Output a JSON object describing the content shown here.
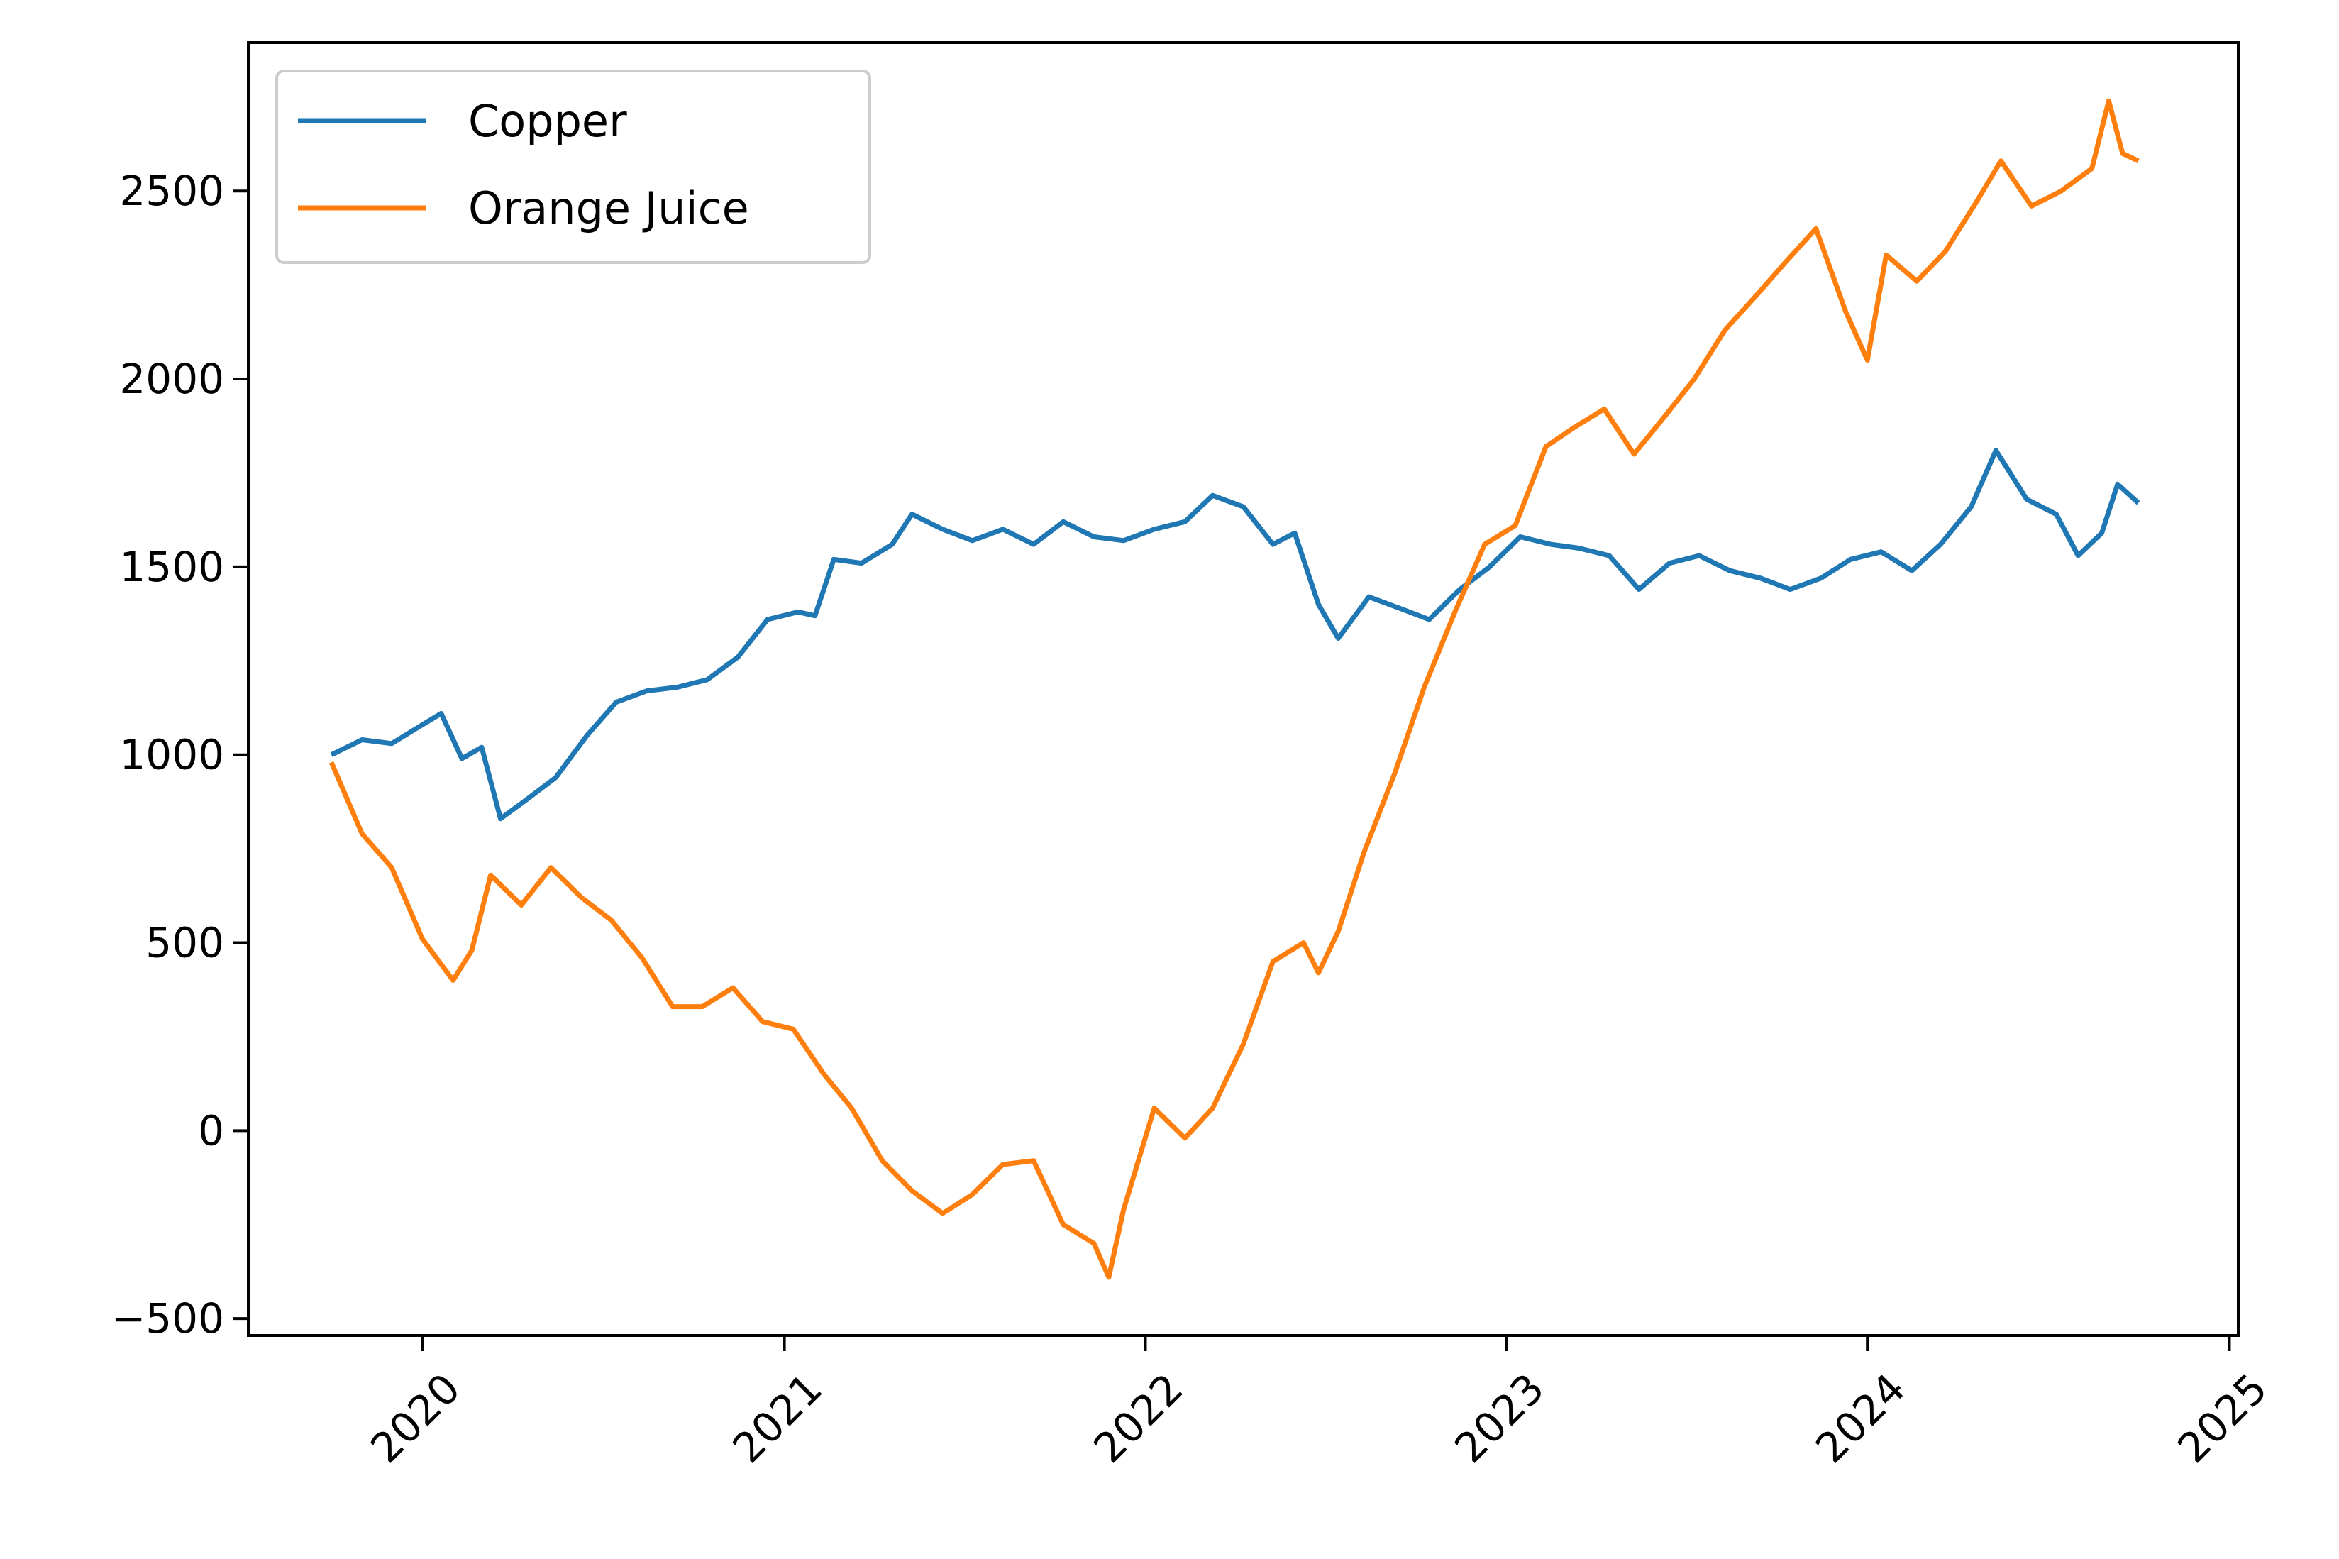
{
  "chart_data": {
    "type": "line",
    "title": "",
    "xlabel": "",
    "ylabel": "",
    "x_ticks": [
      "2020",
      "2021",
      "2022",
      "2023",
      "2024",
      "2025"
    ],
    "y_ticks": [
      "−500",
      "0",
      "500",
      "1000",
      "1500",
      "2000",
      "2500"
    ],
    "xlim": [
      "2019-07-09",
      "2025-01-10"
    ],
    "ylim": [
      -545,
      2895
    ],
    "grid": false,
    "legend_position": "upper-left",
    "series": [
      {
        "name": "Copper",
        "color": "#1f77b4",
        "points": [
          [
            "2019-10-01",
            1000
          ],
          [
            "2019-11-01",
            1040
          ],
          [
            "2019-12-01",
            1030
          ],
          [
            "2020-01-01",
            1080
          ],
          [
            "2020-01-20",
            1110
          ],
          [
            "2020-02-10",
            990
          ],
          [
            "2020-03-01",
            1020
          ],
          [
            "2020-03-20",
            830
          ],
          [
            "2020-04-15",
            880
          ],
          [
            "2020-05-15",
            940
          ],
          [
            "2020-06-15",
            1050
          ],
          [
            "2020-07-15",
            1140
          ],
          [
            "2020-08-15",
            1170
          ],
          [
            "2020-09-15",
            1180
          ],
          [
            "2020-10-15",
            1200
          ],
          [
            "2020-11-15",
            1260
          ],
          [
            "2020-12-15",
            1360
          ],
          [
            "2021-01-15",
            1380
          ],
          [
            "2021-02-01",
            1370
          ],
          [
            "2021-02-20",
            1520
          ],
          [
            "2021-03-20",
            1510
          ],
          [
            "2021-04-20",
            1560
          ],
          [
            "2021-05-10",
            1640
          ],
          [
            "2021-06-10",
            1600
          ],
          [
            "2021-07-10",
            1570
          ],
          [
            "2021-08-10",
            1600
          ],
          [
            "2021-09-10",
            1560
          ],
          [
            "2021-10-10",
            1620
          ],
          [
            "2021-11-10",
            1580
          ],
          [
            "2021-12-10",
            1570
          ],
          [
            "2022-01-10",
            1600
          ],
          [
            "2022-02-10",
            1620
          ],
          [
            "2022-03-10",
            1690
          ],
          [
            "2022-04-10",
            1660
          ],
          [
            "2022-05-10",
            1560
          ],
          [
            "2022-06-01",
            1590
          ],
          [
            "2022-06-25",
            1400
          ],
          [
            "2022-07-15",
            1310
          ],
          [
            "2022-08-15",
            1420
          ],
          [
            "2022-09-15",
            1390
          ],
          [
            "2022-10-15",
            1360
          ],
          [
            "2022-11-15",
            1440
          ],
          [
            "2022-12-15",
            1500
          ],
          [
            "2023-01-15",
            1580
          ],
          [
            "2023-02-15",
            1560
          ],
          [
            "2023-03-15",
            1550
          ],
          [
            "2023-04-15",
            1530
          ],
          [
            "2023-05-15",
            1440
          ],
          [
            "2023-06-15",
            1510
          ],
          [
            "2023-07-15",
            1530
          ],
          [
            "2023-08-15",
            1490
          ],
          [
            "2023-09-15",
            1470
          ],
          [
            "2023-10-15",
            1440
          ],
          [
            "2023-11-15",
            1470
          ],
          [
            "2023-12-15",
            1520
          ],
          [
            "2024-01-15",
            1540
          ],
          [
            "2024-02-15",
            1490
          ],
          [
            "2024-03-15",
            1560
          ],
          [
            "2024-04-15",
            1660
          ],
          [
            "2024-05-10",
            1810
          ],
          [
            "2024-06-10",
            1680
          ],
          [
            "2024-07-10",
            1640
          ],
          [
            "2024-08-01",
            1530
          ],
          [
            "2024-08-25",
            1590
          ],
          [
            "2024-09-10",
            1720
          ],
          [
            "2024-10-01",
            1670
          ]
        ]
      },
      {
        "name": "Orange Juice",
        "color": "#ff7f0e",
        "points": [
          [
            "2019-10-01",
            980
          ],
          [
            "2019-11-01",
            790
          ],
          [
            "2019-12-01",
            700
          ],
          [
            "2020-01-01",
            510
          ],
          [
            "2020-02-01",
            400
          ],
          [
            "2020-02-20",
            480
          ],
          [
            "2020-03-10",
            680
          ],
          [
            "2020-04-10",
            600
          ],
          [
            "2020-05-10",
            700
          ],
          [
            "2020-06-10",
            620
          ],
          [
            "2020-07-10",
            560
          ],
          [
            "2020-08-10",
            460
          ],
          [
            "2020-09-10",
            330
          ],
          [
            "2020-10-10",
            330
          ],
          [
            "2020-11-10",
            380
          ],
          [
            "2020-12-10",
            290
          ],
          [
            "2021-01-10",
            270
          ],
          [
            "2021-02-10",
            150
          ],
          [
            "2021-03-10",
            60
          ],
          [
            "2021-04-10",
            -80
          ],
          [
            "2021-05-10",
            -160
          ],
          [
            "2021-06-10",
            -220
          ],
          [
            "2021-07-10",
            -170
          ],
          [
            "2021-08-10",
            -90
          ],
          [
            "2021-09-10",
            -80
          ],
          [
            "2021-10-10",
            -250
          ],
          [
            "2021-11-10",
            -300
          ],
          [
            "2021-11-25",
            -390
          ],
          [
            "2021-12-10",
            -210
          ],
          [
            "2022-01-10",
            60
          ],
          [
            "2022-02-10",
            -20
          ],
          [
            "2022-03-10",
            60
          ],
          [
            "2022-04-10",
            230
          ],
          [
            "2022-05-10",
            450
          ],
          [
            "2022-06-10",
            500
          ],
          [
            "2022-06-25",
            420
          ],
          [
            "2022-07-15",
            530
          ],
          [
            "2022-08-10",
            740
          ],
          [
            "2022-09-10",
            950
          ],
          [
            "2022-10-10",
            1180
          ],
          [
            "2022-11-10",
            1380
          ],
          [
            "2022-12-10",
            1560
          ],
          [
            "2023-01-10",
            1610
          ],
          [
            "2023-02-10",
            1820
          ],
          [
            "2023-03-10",
            1870
          ],
          [
            "2023-04-10",
            1920
          ],
          [
            "2023-05-10",
            1800
          ],
          [
            "2023-06-10",
            1900
          ],
          [
            "2023-07-10",
            2000
          ],
          [
            "2023-08-10",
            2130
          ],
          [
            "2023-09-10",
            2220
          ],
          [
            "2023-10-10",
            2310
          ],
          [
            "2023-11-10",
            2400
          ],
          [
            "2023-12-10",
            2180
          ],
          [
            "2024-01-01",
            2050
          ],
          [
            "2024-01-20",
            2330
          ],
          [
            "2024-02-20",
            2260
          ],
          [
            "2024-03-20",
            2340
          ],
          [
            "2024-04-20",
            2470
          ],
          [
            "2024-05-15",
            2580
          ],
          [
            "2024-06-15",
            2460
          ],
          [
            "2024-07-15",
            2500
          ],
          [
            "2024-08-15",
            2560
          ],
          [
            "2024-09-01",
            2740
          ],
          [
            "2024-09-15",
            2600
          ],
          [
            "2024-10-01",
            2580
          ]
        ]
      }
    ]
  }
}
